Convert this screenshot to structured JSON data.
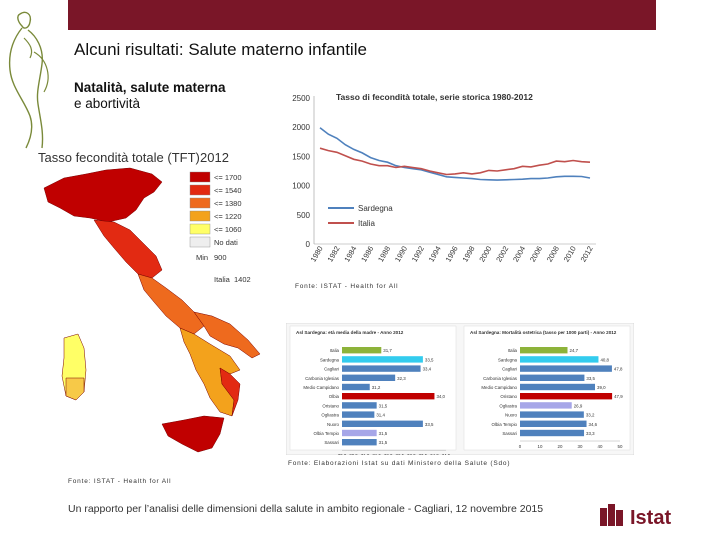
{
  "slide": {
    "title": "Alcuni risultati: Salute materno infantile",
    "subtitle_bold": "Natalità, salute materna",
    "subtitle_rest": "e abortività",
    "footer": "Un rapporto per l’analisi delle dimensioni della salute in ambito regionale - Cagliari, 12 novembre 2015",
    "logo_text": "Istat",
    "source_line": "Fonte: ISTAT - Health for All",
    "source_map": "Fonte: ISTAT - Health for All",
    "source_bars": "Fonte: Elaborazioni Istat su dati Ministero della Salute (Sdo)"
  },
  "colors": {
    "topbar": "#7a1628",
    "sardegna_line": "#4f81bd",
    "italia_line": "#c0504d",
    "map_dark": "#c00000",
    "map_mid": "#e45b1e",
    "map_orange": "#f3a21c",
    "map_light": "#f7c948",
    "map_yellow": "#ffff66",
    "map_nodata": "#eeeeee",
    "bar_blue": "#4f81bd",
    "bar_green": "#8db33a",
    "bar_red": "#c00000",
    "bar_purple": "#a6a6e8",
    "bar_cyan": "#33ccee"
  },
  "map": {
    "title": "Tasso fecondità totale (TFT)",
    "year": "2012",
    "legend": [
      {
        "label": "<= 1700",
        "color": "#c00000"
      },
      {
        "label": "<= 1540",
        "color": "#e22a12"
      },
      {
        "label": "<= 1380",
        "color": "#ee6a1e"
      },
      {
        "label": "<= 1220",
        "color": "#f3a21c"
      },
      {
        "label": "<= 1060",
        "color": "#ffff66"
      },
      {
        "label": "No dati",
        "color": "#eeeeee"
      }
    ],
    "min_label": "Min",
    "min_value": "900",
    "italia_label": "Italia",
    "italia_value": "1402"
  },
  "chart_data": [
    {
      "type": "line",
      "title": "Tasso di fecondità totale, serie storica 1980-2012",
      "x": [
        1980,
        1981,
        1982,
        1983,
        1984,
        1985,
        1986,
        1987,
        1988,
        1989,
        1990,
        1991,
        1992,
        1993,
        1994,
        1995,
        1996,
        1997,
        1998,
        1999,
        2000,
        2001,
        2002,
        2003,
        2004,
        2005,
        2006,
        2007,
        2008,
        2009,
        2010,
        2011,
        2012
      ],
      "x_tick_labels": [
        "1980",
        "1982",
        "1984",
        "1986",
        "1988",
        "1990",
        "1992",
        "1994",
        "1996",
        "1998",
        "2000",
        "2002",
        "2004",
        "2006",
        "2008",
        "2010",
        "2012"
      ],
      "series": [
        {
          "name": "Sardegna",
          "color": "#4f81bd",
          "values": [
            1990,
            1880,
            1810,
            1700,
            1620,
            1560,
            1480,
            1430,
            1400,
            1340,
            1310,
            1290,
            1270,
            1230,
            1190,
            1150,
            1140,
            1130,
            1120,
            1105,
            1100,
            1095,
            1100,
            1105,
            1110,
            1120,
            1120,
            1130,
            1150,
            1160,
            1160,
            1155,
            1130
          ]
        },
        {
          "name": "Italia",
          "color": "#c0504d",
          "values": [
            1640,
            1600,
            1570,
            1510,
            1450,
            1420,
            1370,
            1340,
            1340,
            1310,
            1330,
            1310,
            1290,
            1250,
            1220,
            1190,
            1200,
            1220,
            1200,
            1220,
            1260,
            1250,
            1270,
            1290,
            1330,
            1320,
            1350,
            1370,
            1420,
            1410,
            1430,
            1410,
            1400
          ]
        }
      ],
      "y_ticks": [
        0,
        500,
        1000,
        1500,
        2000,
        2500
      ],
      "ylim": [
        0,
        2500
      ],
      "grid": false,
      "legend_position": "bottom-left"
    },
    {
      "type": "bar",
      "title": "Asl Sardegna: età media della madre - Anno 2012",
      "categories": [
        "Italia",
        "Sardegna",
        "Cagliari",
        "Carbonia Iglesias",
        "Medio Campidano",
        "Olbia",
        "Oristano",
        "Ogliastra",
        "Nuoro",
        "Olbia Tempio",
        "Sassari"
      ],
      "values": [
        31.7,
        33.5,
        33.4,
        32.3,
        31.2,
        34.0,
        31.5,
        31.4,
        33.5,
        31.5,
        31.5
      ],
      "bar_colors": [
        "#8db33a",
        "#33ccee",
        "#4f81bd",
        "#4f81bd",
        "#4f81bd",
        "#c00000",
        "#4f81bd",
        "#4f81bd",
        "#4f81bd",
        "#a6a6e8",
        "#4f81bd"
      ],
      "x_tick_labels": [
        "30,0",
        "30,5",
        "31,0",
        "31,5",
        "32,0",
        "32,5",
        "33,0",
        "33,5",
        "34,0",
        "34,5"
      ],
      "xlim": [
        30,
        34.5
      ]
    },
    {
      "type": "bar",
      "title": "Asl Sardegna: Mortalità ostetrica (tasso per 1000 parti) - Anno 2012",
      "categories": [
        "Italia",
        "Sardegna",
        "Cagliari",
        "Carbonia Iglesias",
        "Medio Campidano",
        "Oristano",
        "Ogliastra",
        "Nuoro",
        "Olbia Tempio",
        "Sassari"
      ],
      "values": [
        24.7,
        40.8,
        47.8,
        33.5,
        39.0,
        47.9,
        26.9,
        33.2,
        34.6,
        33.3
      ],
      "bar_colors": [
        "#8db33a",
        "#33ccee",
        "#4f81bd",
        "#4f81bd",
        "#4f81bd",
        "#c00000",
        "#a6a6e8",
        "#4f81bd",
        "#4f81bd",
        "#4f81bd"
      ],
      "x_tick_labels": [
        "0",
        "10",
        "20",
        "30",
        "40",
        "50"
      ],
      "xlim": [
        0,
        52
      ]
    }
  ]
}
